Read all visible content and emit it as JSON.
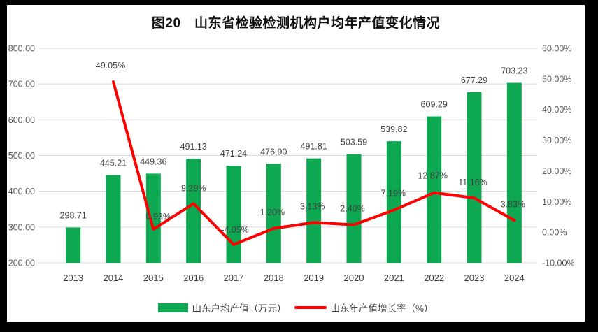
{
  "chart_data": {
    "type": "bar+line",
    "title": "图20　山东省检验检测机构户均年产值变化情况",
    "categories": [
      "2013",
      "2014",
      "2015",
      "2016",
      "2017",
      "2018",
      "2019",
      "2020",
      "2021",
      "2022",
      "2023",
      "2024"
    ],
    "series": [
      {
        "name": "山东户均产值（万元）",
        "type": "bar",
        "axis": "left",
        "color": "#0FA852",
        "values": [
          298.71,
          445.21,
          449.36,
          491.13,
          471.24,
          476.9,
          491.81,
          503.59,
          539.82,
          609.29,
          677.29,
          703.23
        ],
        "data_labels": [
          "298.71",
          "445.21",
          "449.36",
          "491.13",
          "471.24",
          "476.90",
          "491.81",
          "503.59",
          "539.82",
          "609.29",
          "677.29",
          "703.23"
        ]
      },
      {
        "name": "山东年产值增长率（%）",
        "type": "line",
        "axis": "right",
        "color": "#FE0000",
        "values": [
          null,
          49.05,
          0.93,
          9.29,
          -4.05,
          1.2,
          3.13,
          2.4,
          7.19,
          12.87,
          11.16,
          3.83
        ],
        "data_labels": [
          null,
          "49.05%",
          "0.93%",
          "9.29%",
          "-4.05%",
          "1.20%",
          "3.13%",
          "2.40%",
          "7.19%",
          "12.87%",
          "11.16%",
          "3.83%"
        ]
      }
    ],
    "left_axis": {
      "min": 200,
      "max": 800,
      "step": 100,
      "tick_labels": [
        "800.00",
        "700.00",
        "600.00",
        "500.00",
        "400.00",
        "300.00",
        "200.00"
      ]
    },
    "right_axis": {
      "min": -10,
      "max": 60,
      "step": 10,
      "tick_labels": [
        "60.00%",
        "50.00%",
        "40.00%",
        "30.00%",
        "20.00%",
        "10.00%",
        "0.00%",
        "-10.00%"
      ]
    },
    "grid": true,
    "legend_position": "bottom",
    "colors": {
      "grid": "#D9D9D9",
      "axis_text": "#595959",
      "label_text": "#3F3F3F",
      "year_text": "#404040",
      "background": "#FFFFFF",
      "frame": "#000000"
    }
  }
}
